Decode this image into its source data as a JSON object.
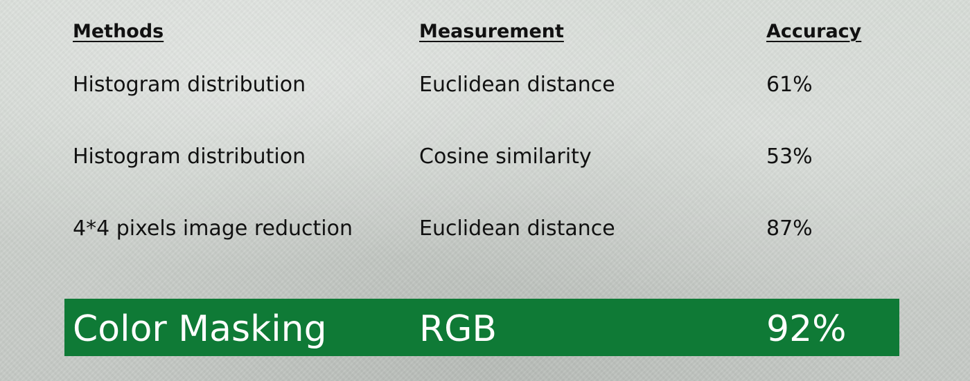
{
  "table": {
    "headers": [
      "Methods",
      "Measurement",
      "Accuracy"
    ],
    "rows": [
      {
        "method": "Histogram distribution",
        "measurement": "Euclidean distance",
        "accuracy": "61%"
      },
      {
        "method": "Histogram distribution",
        "measurement": "Cosine similarity",
        "accuracy": "53%"
      },
      {
        "method": "4*4 pixels image reduction",
        "measurement": "Euclidean distance",
        "accuracy": "87%"
      }
    ],
    "highlight": {
      "method": "Color Masking",
      "measurement": "RGB",
      "accuracy": "92%"
    }
  },
  "colors": {
    "highlight_background": "#0f7a36",
    "highlight_text": "#ffffff",
    "body_text": "#111111"
  }
}
